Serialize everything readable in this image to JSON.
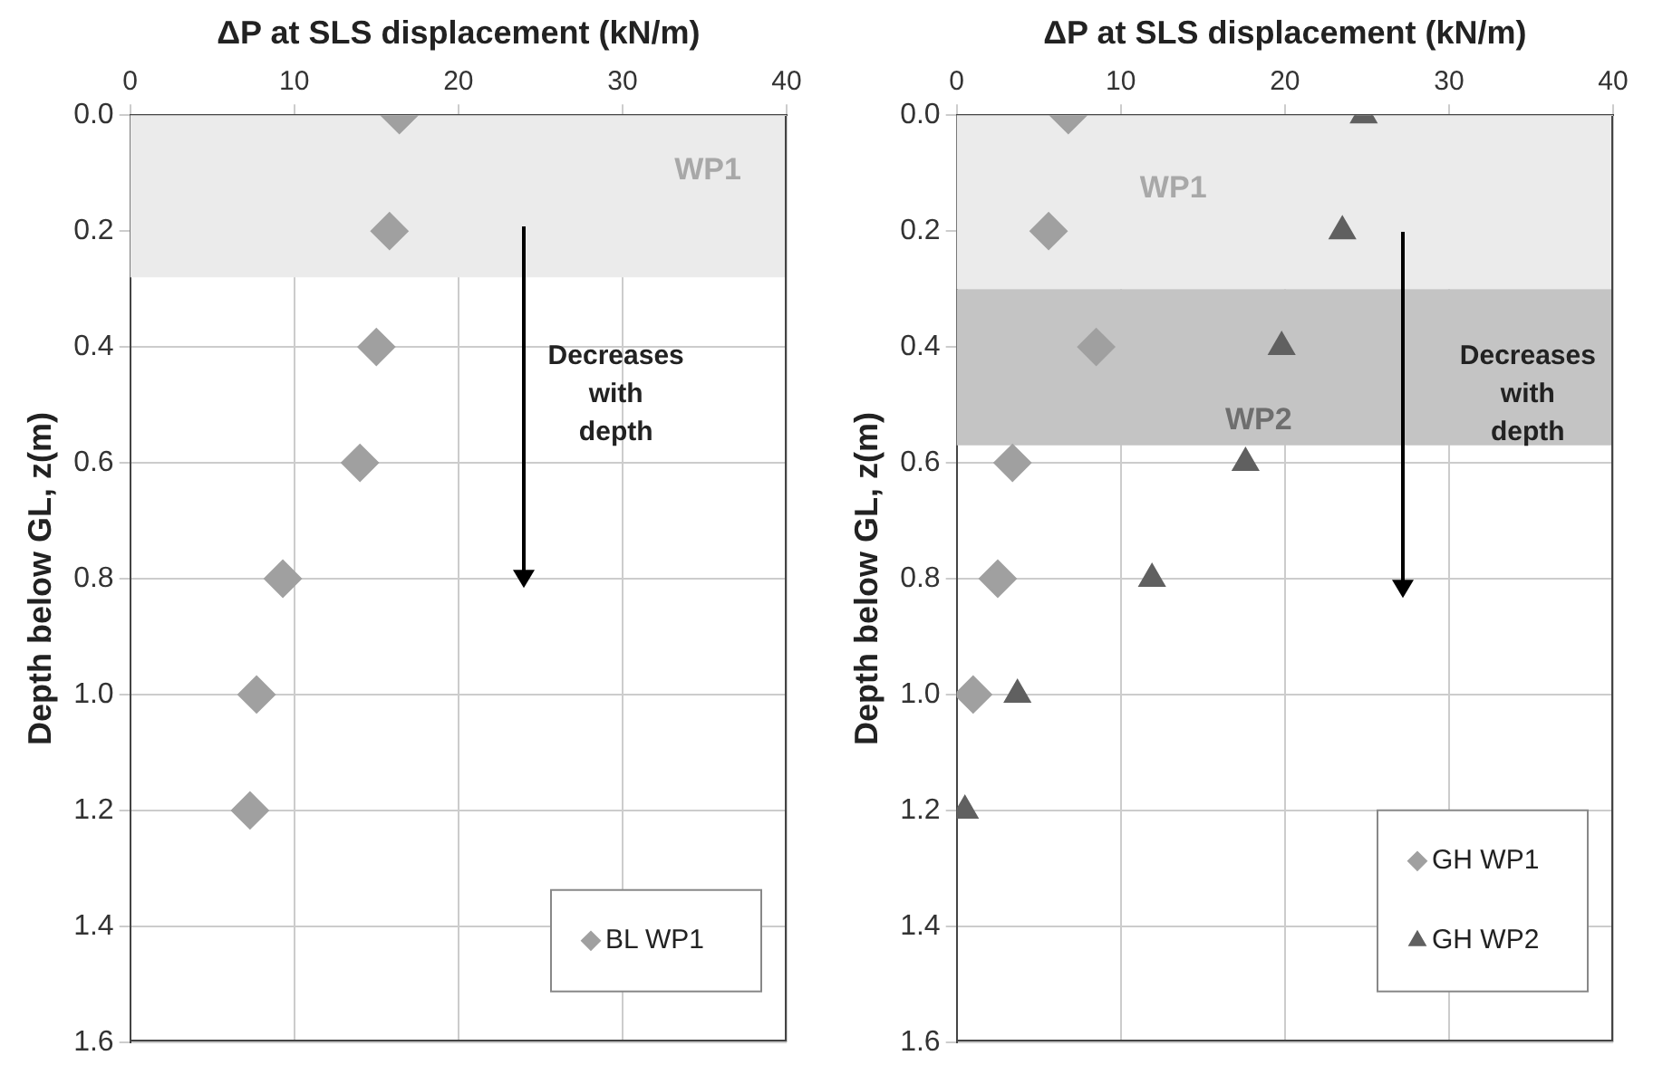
{
  "chart_data": [
    {
      "type": "scatter",
      "xlabel": "ΔP at SLS displacement (kN/m)",
      "ylabel": "Depth below GL, z(m)",
      "xlim": [
        0,
        40
      ],
      "xticks": [
        0,
        10,
        20,
        30,
        40
      ],
      "ylim": [
        1.6,
        0
      ],
      "yticks": [
        {
          "value": 0,
          "label": "0.0"
        },
        {
          "value": 0.2,
          "label": "0.2"
        },
        {
          "value": 0.4,
          "label": "0.4"
        },
        {
          "value": 0.6,
          "label": "0.6"
        },
        {
          "value": 0.8,
          "label": "0.8"
        },
        {
          "value": 1,
          "label": "1.0"
        },
        {
          "value": 1.2,
          "label": "1.2"
        },
        {
          "value": 1.4,
          "label": "1.4"
        },
        {
          "value": 1.6,
          "label": "1.6"
        }
      ],
      "grid": true,
      "legend": "bottom right",
      "bands": [
        {
          "axis": "y",
          "from": 0,
          "to": 0.28,
          "label": "WP1",
          "color": "#ebebeb"
        }
      ],
      "annotations": [
        "Decreases with depth"
      ],
      "series": [
        {
          "name": "BL WP1",
          "color": "#a0a0a0",
          "marker": "diamond",
          "x": [
            16.4,
            15.8,
            15,
            14,
            9.3,
            7.7,
            7.3
          ],
          "values": [
            0,
            0.2,
            0.4,
            0.6,
            0.8,
            1,
            1.2
          ]
        }
      ]
    },
    {
      "type": "scatter",
      "xlabel": "ΔP at SLS displacement (kN/m)",
      "ylabel": "Depth below GL, z(m)",
      "xlim": [
        0,
        40
      ],
      "xticks": [
        0,
        10,
        20,
        30,
        40
      ],
      "ylim": [
        1.6,
        0
      ],
      "yticks": [
        {
          "value": 0,
          "label": "0.0"
        },
        {
          "value": 0.2,
          "label": "0.2"
        },
        {
          "value": 0.4,
          "label": "0.4"
        },
        {
          "value": 0.6,
          "label": "0.6"
        },
        {
          "value": 0.8,
          "label": "0.8"
        },
        {
          "value": 1,
          "label": "1.0"
        },
        {
          "value": 1.2,
          "label": "1.2"
        },
        {
          "value": 1.4,
          "label": "1.4"
        },
        {
          "value": 1.6,
          "label": "1.6"
        }
      ],
      "grid": true,
      "legend": "bottom right",
      "bands": [
        {
          "axis": "y",
          "from": 0,
          "to": 0.3,
          "label": "WP1",
          "color": "#ebebeb"
        },
        {
          "axis": "y",
          "from": 0.3,
          "to": 0.57,
          "label": "WP2",
          "color": "#c4c4c4"
        }
      ],
      "annotations": [
        "Decreases with depth"
      ],
      "series": [
        {
          "name": "GH WP1",
          "color": "#a0a0a0",
          "marker": "diamond",
          "x": [
            6.8,
            5.6,
            8.5,
            3.4,
            2.5,
            1
          ],
          "values": [
            0,
            0.2,
            0.4,
            0.6,
            0.8,
            1
          ]
        },
        {
          "name": "GH WP2",
          "color": "#606060",
          "marker": "triangle",
          "x": [
            24.8,
            23.5,
            19.8,
            17.6,
            11.9,
            3.7,
            0.5
          ],
          "values": [
            0,
            0.2,
            0.4,
            0.6,
            0.8,
            1,
            1.2
          ]
        }
      ]
    }
  ]
}
